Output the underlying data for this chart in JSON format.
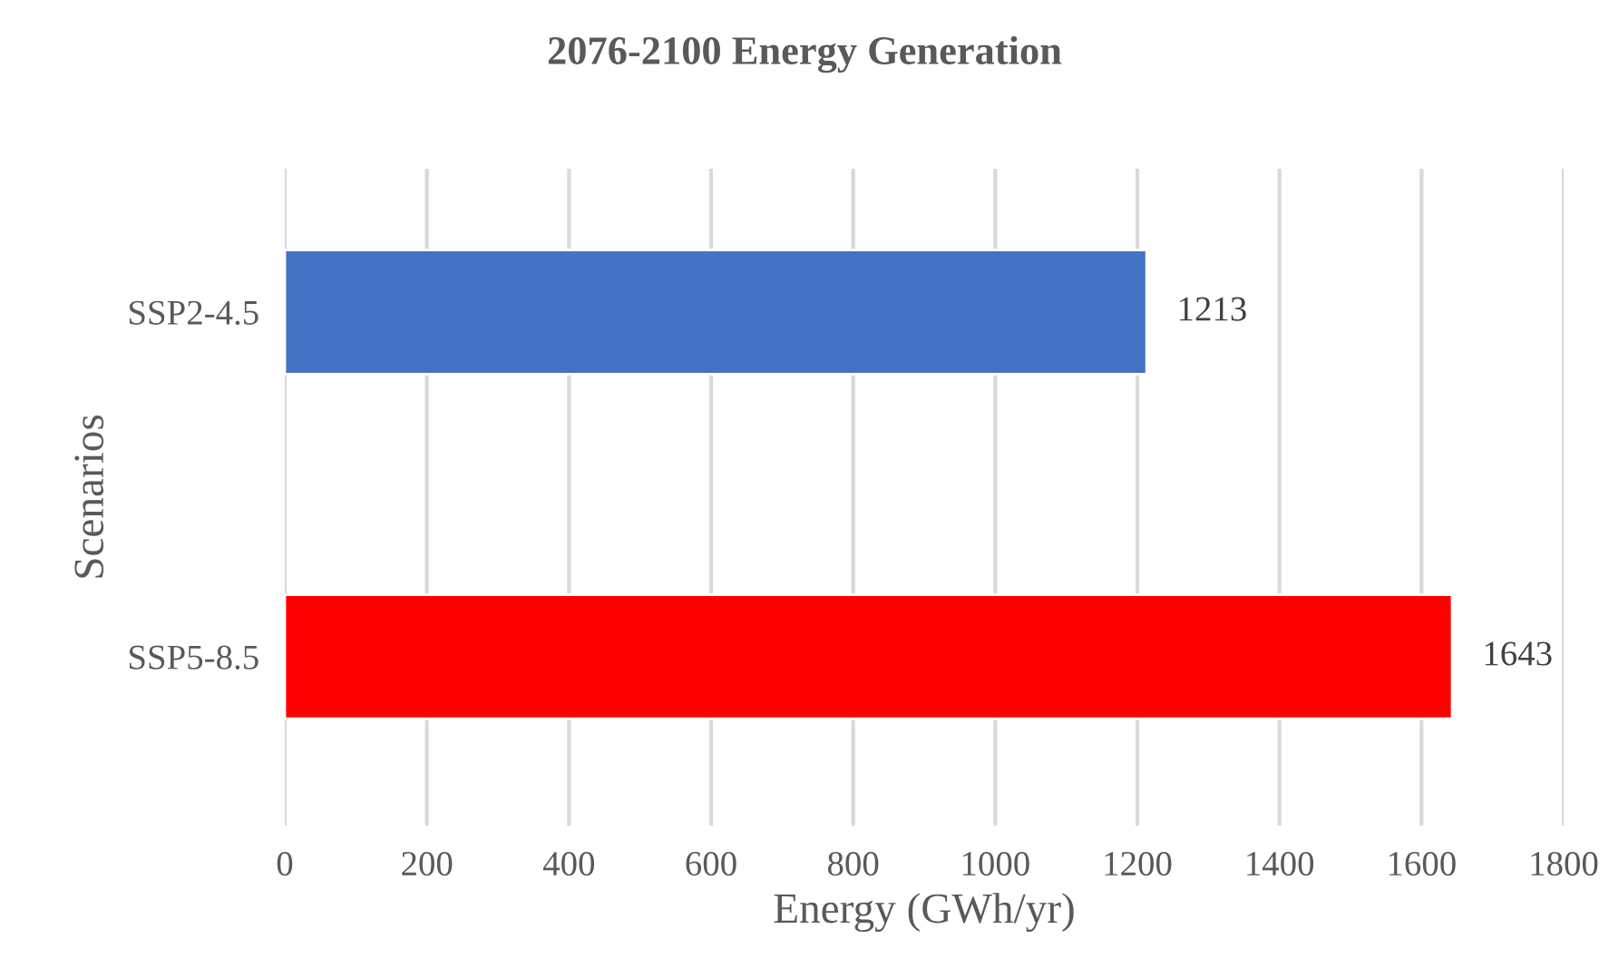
{
  "chart_data": {
    "type": "bar",
    "orientation": "horizontal",
    "title": "2076-2100 Energy Generation",
    "xlabel": "Energy (GWh/yr)",
    "ylabel": "Scenarios",
    "categories": [
      "SSP2-4.5",
      "SSP5-8.5"
    ],
    "values": [
      1213,
      1643
    ],
    "colors": [
      "#4472c4",
      "#ff0000"
    ],
    "xlim": [
      0,
      1800
    ],
    "xticks": [
      0,
      200,
      400,
      600,
      800,
      1000,
      1200,
      1400,
      1600,
      1800
    ],
    "grid": "x",
    "data_labels": true,
    "legend": false
  }
}
